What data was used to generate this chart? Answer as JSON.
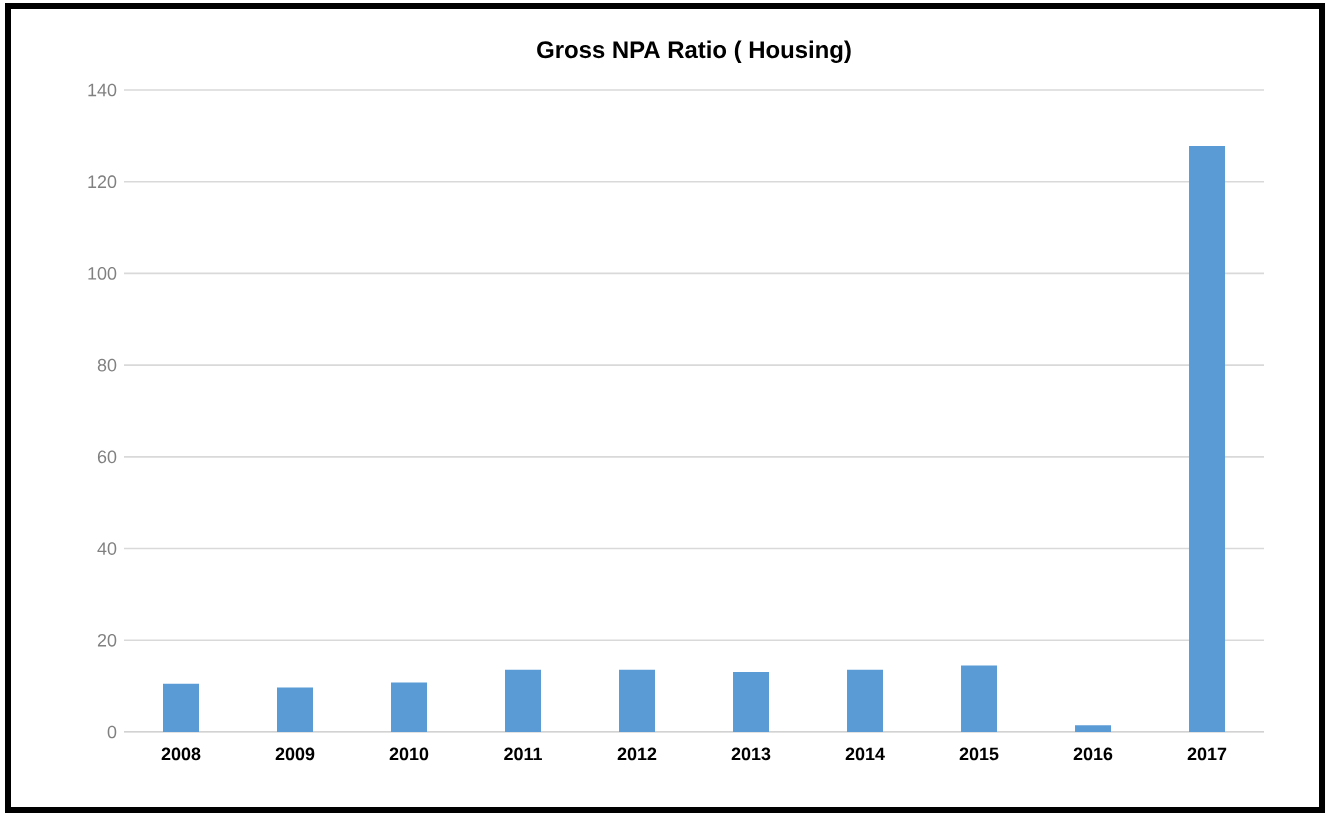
{
  "chart_data": {
    "type": "bar",
    "title": "Gross NPA Ratio ( Housing)",
    "categories": [
      "2008",
      "2009",
      "2010",
      "2011",
      "2012",
      "2013",
      "2014",
      "2015",
      "2016",
      "2017"
    ],
    "values": [
      10.5,
      9.7,
      10.8,
      13.6,
      13.6,
      13.1,
      13.6,
      14.5,
      1.5,
      127.8
    ],
    "color": "#5b9bd5",
    "ylim": [
      0,
      140
    ],
    "yticks": [
      0,
      20,
      40,
      60,
      80,
      100,
      120,
      140
    ],
    "grid": "y"
  }
}
